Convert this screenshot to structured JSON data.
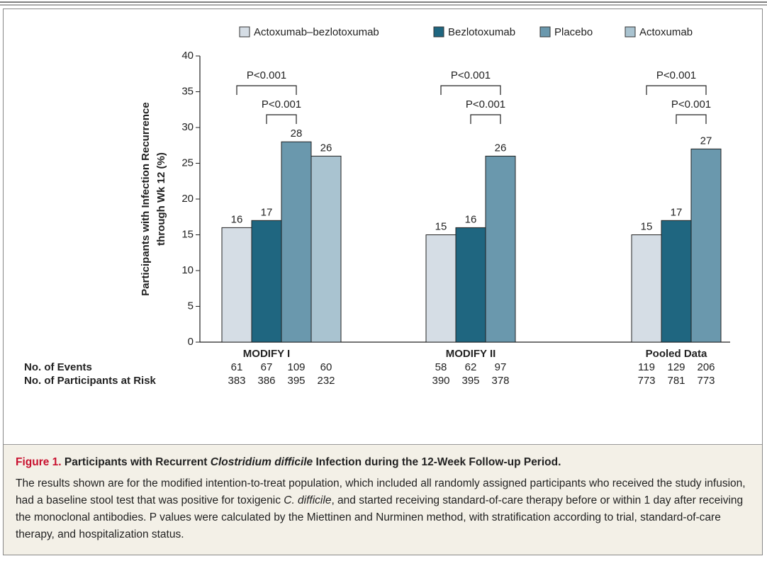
{
  "chart_data": {
    "type": "bar",
    "legend": "top",
    "ylabel": [
      "Participants with Infection Recurrence",
      "through Wk 12 (%)"
    ],
    "categories": [
      "MODIFY I",
      "MODIFY II",
      "Pooled Data"
    ],
    "series": [
      {
        "name": "Actoxumab–bezlotoxumab",
        "color": "#d5dde5",
        "values": [
          16,
          15,
          15
        ]
      },
      {
        "name": "Bezlotoxumab",
        "color": "#1f6680",
        "values": [
          17,
          16,
          17
        ]
      },
      {
        "name": "Placebo",
        "color": "#6a98ad",
        "values": [
          28,
          26,
          27
        ]
      },
      {
        "name": "Actoxumab",
        "color": "#a9c3d0",
        "values": [
          26,
          null,
          null
        ]
      }
    ],
    "ylim": [
      0,
      40
    ],
    "yticks": [
      0,
      5,
      10,
      15,
      20,
      25,
      30,
      35,
      40
    ],
    "annotations": [
      "P<0.001",
      "P<0.001",
      "P<0.001",
      "P<0.001",
      "P<0.001",
      "P<0.001"
    ],
    "table": {
      "rows": [
        {
          "label": "No. of Events",
          "values": [
            [
              61,
              67,
              109,
              60
            ],
            [
              58,
              62,
              97
            ],
            [
              119,
              129,
              206
            ]
          ]
        },
        {
          "label": "No. of Participants at Risk",
          "values": [
            [
              383,
              386,
              395,
              232
            ],
            [
              390,
              395,
              378
            ],
            [
              773,
              781,
              773
            ]
          ]
        }
      ]
    }
  },
  "caption": {
    "label": "Figure 1.",
    "title": [
      "Participants with Recurrent ",
      "Clostridium difficile",
      " Infection during the 12-Week Follow-up Period."
    ],
    "body": [
      "The results shown are for the modified intention-to-treat population, which included all randomly assigned participants who received the study infusion, had a baseline stool test that was positive for toxigenic ",
      "C. difficile",
      ", and started receiving standard-of-care therapy before or within 1 day after receiving the monoclonal antibodies. P values were calculated by the Miettinen and Nurminen method, with stratification according to trial, standard-of-care therapy, and hospitalization status."
    ]
  }
}
